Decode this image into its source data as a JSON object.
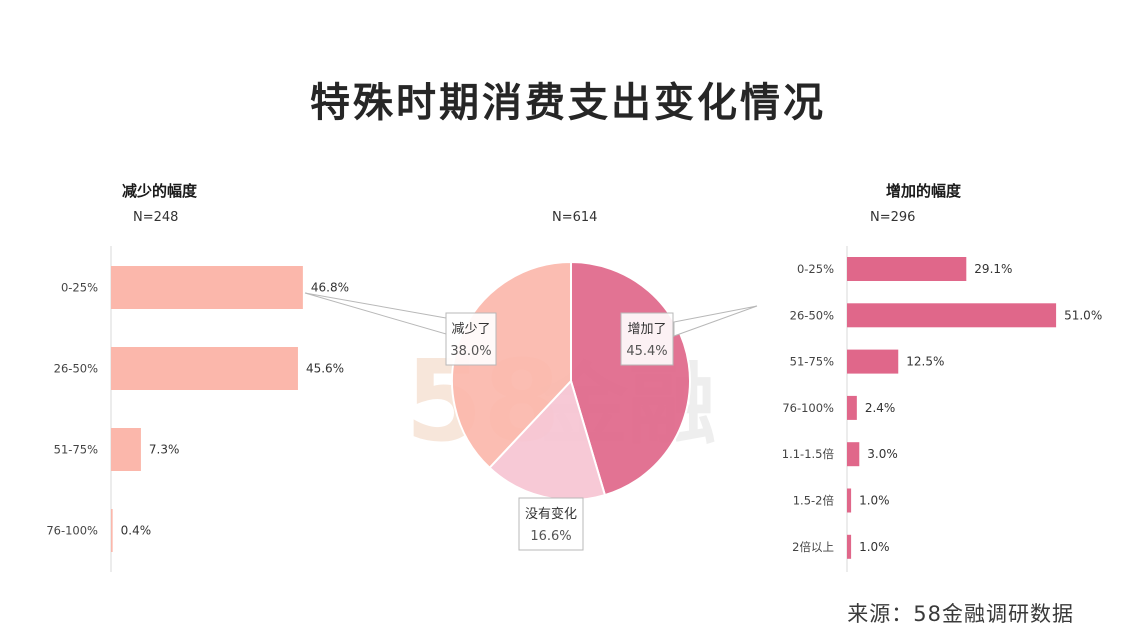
{
  "title": "特殊时期消费支出变化情况",
  "source": "来源：58金融调研数据",
  "colors": {
    "decrease_bar": "#fbb7ab",
    "increase_bar": "#e0678a",
    "pie_increase": "#e0678a",
    "pie_decrease": "#fbb7ab",
    "pie_nochange": "#f6c4d3"
  },
  "watermark": "58金融",
  "chart_data": [
    {
      "type": "bar",
      "orientation": "horizontal",
      "title": "减少的幅度",
      "note": "N=248",
      "categories": [
        "0-25%",
        "26-50%",
        "51-75%",
        "76-100%"
      ],
      "values": [
        46.8,
        45.6,
        7.3,
        0.4
      ],
      "labels": [
        "46.8%",
        "45.6%",
        "7.3%",
        "0.4%"
      ]
    },
    {
      "type": "pie",
      "note": "N=614",
      "slices": [
        {
          "label": "增加了",
          "value": 45.4,
          "text": "45.4%"
        },
        {
          "label": "没有变化",
          "value": 16.6,
          "text": "16.6%"
        },
        {
          "label": "减少了",
          "value": 38.0,
          "text": "38.0%"
        }
      ]
    },
    {
      "type": "bar",
      "orientation": "horizontal",
      "title": "增加的幅度",
      "note": "N=296",
      "categories": [
        "0-25%",
        "26-50%",
        "51-75%",
        "76-100%",
        "1.1-1.5倍",
        "1.5-2倍",
        "2倍以上"
      ],
      "values": [
        29.1,
        51.0,
        12.5,
        2.4,
        3.0,
        1.0,
        1.0
      ],
      "labels": [
        "29.1%",
        "51.0%",
        "12.5%",
        "2.4%",
        "3.0%",
        "1.0%",
        "1.0%"
      ]
    }
  ]
}
